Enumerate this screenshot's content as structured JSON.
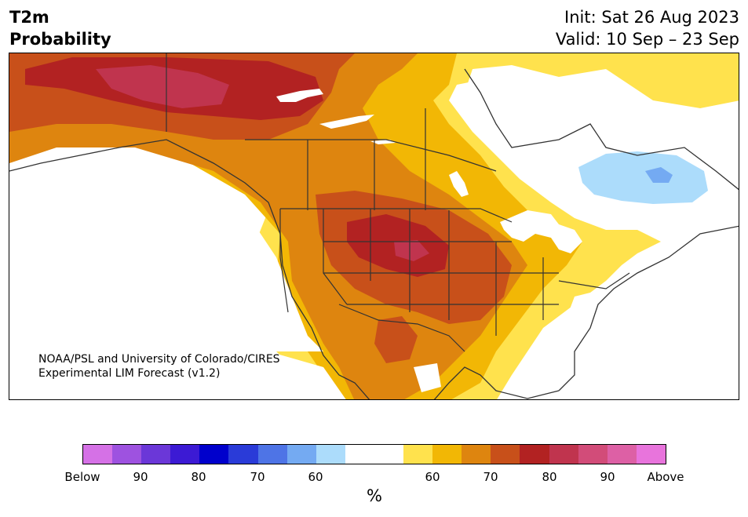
{
  "title": {
    "left_line1": "T2m",
    "left_line2": "Probability",
    "right_line1": "Init: Sat 26 Aug 2023",
    "right_line2": "Valid: 10 Sep – 23 Sep"
  },
  "credit": {
    "line1": "NOAA/PSL and University of Colorado/CIRES",
    "line2": "Experimental LIM Forecast (v1.2)"
  },
  "colorbar": {
    "colors": [
      "#d571e6",
      "#9e52e0",
      "#6b37d8",
      "#3c1ad4",
      "#0000cc",
      "#2a3bd8",
      "#4e74e6",
      "#74aaf2",
      "#acdcfb",
      "#ffffff",
      "#ffffff",
      "#ffe24d",
      "#f2b705",
      "#de850f",
      "#c8501a",
      "#b22222",
      "#c0344e",
      "#d24c79",
      "#dd60a5",
      "#e874dc"
    ],
    "labels": [
      "Below",
      "90",
      "80",
      "70",
      "60",
      "60",
      "70",
      "80",
      "90",
      "Above"
    ],
    "unit": "%"
  },
  "map": {
    "colors": {
      "c60": "#ffe24d",
      "c65": "#f2b705",
      "c70": "#de850f",
      "c75": "#c8501a",
      "c80": "#b22222",
      "c85": "#c0344e",
      "b60": "#acdcfb",
      "b65": "#74aaf2",
      "land": "#ffffff",
      "line": "#333333"
    }
  }
}
